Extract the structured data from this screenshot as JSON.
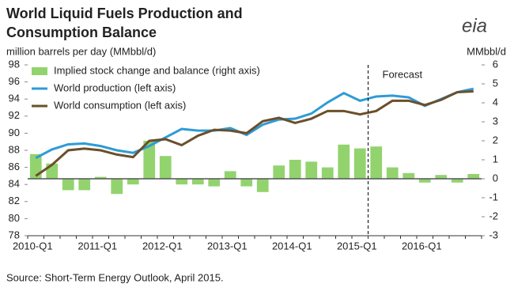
{
  "chart_data": {
    "type": "bar-line",
    "title": [
      "World Liquid Fuels Production and",
      "Consumption Balance"
    ],
    "y_label": "million barrels per day (MMbbl/d)",
    "y2_label": "MMbbl/d",
    "logo": "eia",
    "annotation": "Forecast",
    "source": "Source: Short-Term Energy Outlook, April 2015.",
    "categories": [
      "2010-Q1",
      null,
      null,
      null,
      "2011-Q1",
      null,
      null,
      null,
      "2012-Q1",
      null,
      null,
      null,
      "2013-Q1",
      null,
      null,
      null,
      "2014-Q1",
      null,
      null,
      null,
      "2015-Q1",
      null,
      null,
      null,
      "2016-Q1",
      null,
      null,
      null
    ],
    "ylim": [
      78,
      98
    ],
    "yticks": [
      78,
      80,
      82,
      84,
      86,
      88,
      90,
      92,
      94,
      96,
      98
    ],
    "y2lim": [
      -3,
      6
    ],
    "y2ticks": [
      -3,
      -2,
      -1,
      0,
      1,
      2,
      3,
      4,
      5,
      6
    ],
    "series": [
      {
        "name": "Implied stock change and balance (right axis)",
        "kind": "bar",
        "axis": "y2",
        "color": "#92d36e",
        "values": [
          1.3,
          0.8,
          -0.6,
          -0.6,
          0.1,
          -0.8,
          -0.3,
          2.0,
          1.2,
          -0.3,
          -0.3,
          -0.4,
          0.4,
          -0.4,
          -0.7,
          0.7,
          1.0,
          0.9,
          0.6,
          1.8,
          1.6,
          1.7,
          0.6,
          0.3,
          -0.2,
          0.2,
          -0.2,
          0.25
        ]
      },
      {
        "name": "World production (left axis)",
        "kind": "line",
        "color": "#2e9bd6",
        "values": [
          87.1,
          88.1,
          88.7,
          88.8,
          88.5,
          88.0,
          87.7,
          88.5,
          89.5,
          90.5,
          90.3,
          90.3,
          90.6,
          89.8,
          91.0,
          91.6,
          91.7,
          92.3,
          93.6,
          94.7,
          93.8,
          94.3,
          94.4,
          94.2,
          93.2,
          94.0,
          94.8,
          95.2
        ]
      },
      {
        "name": "World consumption (left axis)",
        "kind": "line",
        "color": "#6b4f2a",
        "values": [
          85.0,
          86.3,
          88.0,
          88.2,
          88.0,
          87.5,
          87.2,
          89.1,
          89.3,
          88.6,
          89.7,
          90.4,
          90.3,
          90.0,
          91.4,
          91.8,
          91.2,
          91.7,
          92.6,
          92.6,
          92.2,
          92.6,
          93.8,
          93.8,
          93.3,
          93.9,
          94.8,
          94.9
        ]
      }
    ],
    "forecast_start_index": 21
  }
}
